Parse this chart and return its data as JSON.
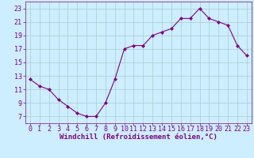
{
  "x": [
    0,
    1,
    2,
    3,
    4,
    5,
    6,
    7,
    8,
    9,
    10,
    11,
    12,
    13,
    14,
    15,
    16,
    17,
    18,
    19,
    20,
    21,
    22,
    23
  ],
  "y": [
    12.5,
    11.5,
    11.0,
    9.5,
    8.5,
    7.5,
    7.0,
    7.0,
    9.0,
    12.5,
    17.0,
    17.5,
    17.5,
    19.0,
    19.5,
    20.0,
    21.5,
    21.5,
    23.0,
    21.5,
    21.0,
    20.5,
    17.5,
    16.0
  ],
  "line_color": "#800080",
  "marker": "D",
  "marker_size": 2.0,
  "bg_color": "#cceeff",
  "grid_color": "#aacccc",
  "xlabel": "Windchill (Refroidissement éolien,°C)",
  "xlabel_color": "#800080",
  "xlabel_fontsize": 6.5,
  "tick_color": "#800080",
  "tick_fontsize": 6,
  "ylim": [
    6,
    24
  ],
  "xlim": [
    -0.5,
    23.5
  ],
  "yticks": [
    7,
    9,
    11,
    13,
    15,
    17,
    19,
    21,
    23
  ],
  "xticks": [
    0,
    1,
    2,
    3,
    4,
    5,
    6,
    7,
    8,
    9,
    10,
    11,
    12,
    13,
    14,
    15,
    16,
    17,
    18,
    19,
    20,
    21,
    22,
    23
  ]
}
